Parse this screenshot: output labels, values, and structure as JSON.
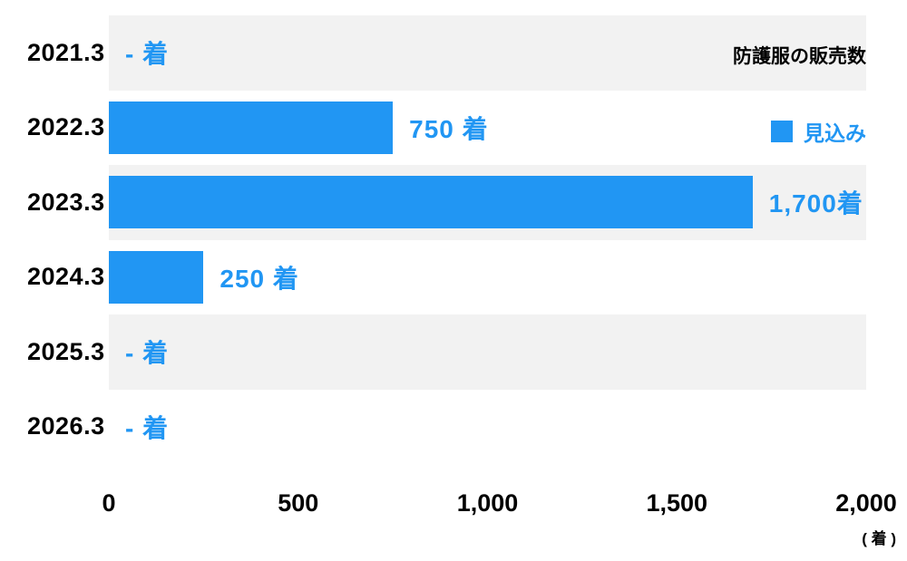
{
  "chart_data": {
    "type": "bar",
    "orientation": "horizontal",
    "title": "防護服の販売数",
    "legend": {
      "label": "見込み",
      "color": "#2196f3",
      "position": "right"
    },
    "categories": [
      "2021.3",
      "2022.3",
      "2023.3",
      "2024.3",
      "2025.3",
      "2026.3"
    ],
    "values": [
      null,
      750,
      1700,
      250,
      null,
      null
    ],
    "value_labels": [
      "- 着",
      "750 着",
      "1,700着",
      "250 着",
      "- 着",
      "- 着"
    ],
    "xlim": [
      0,
      2000
    ],
    "x_ticks": [
      {
        "value": 0,
        "label": "0"
      },
      {
        "value": 500,
        "label": "500"
      },
      {
        "value": 1000,
        "label": "1,000"
      },
      {
        "value": 1500,
        "label": "1,500"
      },
      {
        "value": 2000,
        "label": "2,000"
      }
    ],
    "x_unit_label": "( 着 )",
    "bar_color": "#2196f3",
    "value_label_color": "#2196f3",
    "row_stripe_colors": [
      "#f2f2f2",
      "#ffffff"
    ],
    "grid": false
  }
}
